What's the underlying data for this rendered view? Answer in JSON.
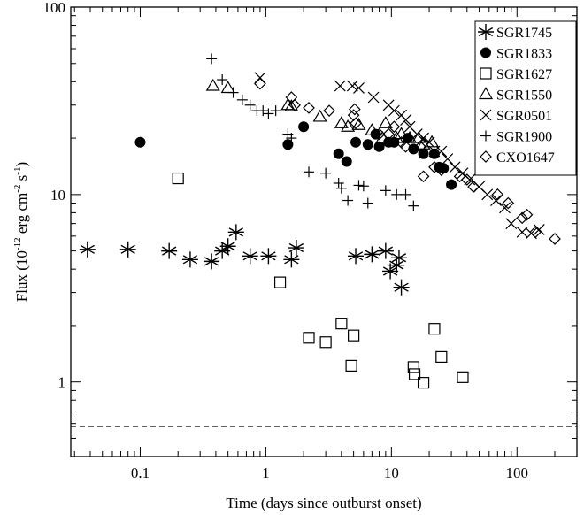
{
  "chart_data": {
    "type": "scatter",
    "title": "",
    "xlabel": "Time (days since outburst onset)",
    "ylabel_parts": {
      "before_exp1": "Flux (10",
      "exp1": "-12",
      "mid1": " erg cm",
      "exp2": "-2",
      "mid2": " s",
      "exp3": "-1",
      "after": ")"
    },
    "xscale": "log",
    "yscale": "log",
    "xlim": [
      0.028,
      300
    ],
    "ylim": [
      0.4,
      100
    ],
    "x_ticks": [
      {
        "value": 0.1,
        "label": "0.1"
      },
      {
        "value": 1,
        "label": "1"
      },
      {
        "value": 10,
        "label": "10"
      },
      {
        "value": 100,
        "label": "100"
      }
    ],
    "y_ticks": [
      {
        "value": 1,
        "label": "1"
      },
      {
        "value": 10,
        "label": "10"
      },
      {
        "value": 100,
        "label": "100"
      }
    ],
    "reference_line": {
      "y": 0.58,
      "style": "dashed"
    },
    "legend_position": "top-right",
    "series": [
      {
        "name": "SGR1745",
        "marker": "asterisk",
        "points": [
          [
            0.038,
            5.1
          ],
          [
            0.08,
            5.1
          ],
          [
            0.17,
            5.0
          ],
          [
            0.25,
            4.5
          ],
          [
            0.37,
            4.4
          ],
          [
            0.45,
            5.0
          ],
          [
            0.5,
            5.3
          ],
          [
            0.58,
            6.3
          ],
          [
            0.75,
            4.7
          ],
          [
            1.05,
            4.7
          ],
          [
            1.6,
            4.5
          ],
          [
            1.75,
            5.2
          ],
          [
            5.2,
            4.7
          ],
          [
            7,
            4.8
          ],
          [
            9,
            5.0
          ],
          [
            9.8,
            3.9
          ],
          [
            11,
            4.2
          ],
          [
            11.5,
            4.6
          ],
          [
            12,
            3.2
          ]
        ]
      },
      {
        "name": "SGR1833",
        "marker": "filled-circle",
        "points": [
          [
            0.1,
            19
          ],
          [
            1.5,
            18.5
          ],
          [
            2,
            23
          ],
          [
            3.8,
            16.5
          ],
          [
            4.4,
            15
          ],
          [
            5.2,
            19
          ],
          [
            6.5,
            18.5
          ],
          [
            7.5,
            21
          ],
          [
            8,
            18
          ],
          [
            9.5,
            19
          ],
          [
            10.5,
            19
          ],
          [
            13.5,
            20
          ],
          [
            15,
            17.5
          ],
          [
            18,
            16.5
          ],
          [
            22,
            16.5
          ],
          [
            24,
            14
          ],
          [
            26,
            13.8
          ],
          [
            30,
            11.3
          ]
        ]
      },
      {
        "name": "SGR1627",
        "marker": "open-square",
        "points": [
          [
            0.2,
            12.2
          ],
          [
            1.3,
            3.4
          ],
          [
            2.2,
            1.72
          ],
          [
            3,
            1.63
          ],
          [
            4,
            2.05
          ],
          [
            4.8,
            1.22
          ],
          [
            5,
            1.77
          ],
          [
            15,
            1.2
          ],
          [
            15.3,
            1.1
          ],
          [
            18,
            0.99
          ],
          [
            22,
            1.92
          ],
          [
            25,
            1.36
          ],
          [
            37,
            1.06
          ]
        ]
      },
      {
        "name": "SGR1550",
        "marker": "open-triangle",
        "points": [
          [
            0.38,
            38
          ],
          [
            0.5,
            37
          ],
          [
            1.5,
            30
          ],
          [
            1.6,
            29.5
          ],
          [
            2.7,
            26
          ],
          [
            4,
            24
          ],
          [
            4.5,
            23
          ],
          [
            5.5,
            23.5
          ],
          [
            7,
            22
          ],
          [
            8.5,
            20
          ],
          [
            9,
            24
          ],
          [
            11,
            20
          ],
          [
            12,
            21
          ],
          [
            14,
            20
          ],
          [
            16.5,
            20
          ],
          [
            18,
            18.5
          ],
          [
            21,
            19
          ]
        ]
      },
      {
        "name": "SGR0501",
        "marker": "x",
        "points": [
          [
            0.9,
            42
          ],
          [
            3.9,
            38
          ],
          [
            4.9,
            38
          ],
          [
            5.5,
            37
          ],
          [
            7.2,
            33
          ],
          [
            9.5,
            30
          ],
          [
            10.5,
            28
          ],
          [
            12,
            26.5
          ],
          [
            13,
            25
          ],
          [
            14,
            23
          ],
          [
            16,
            21
          ],
          [
            18,
            20
          ],
          [
            20,
            19
          ],
          [
            22,
            17
          ],
          [
            25,
            17
          ],
          [
            28,
            15.5
          ],
          [
            32,
            14
          ],
          [
            37,
            13
          ],
          [
            42,
            12
          ],
          [
            50,
            11
          ],
          [
            58,
            10
          ],
          [
            68,
            9.3
          ],
          [
            80,
            8.5
          ],
          [
            90,
            7
          ],
          [
            110,
            6.3
          ],
          [
            130,
            6.2
          ],
          [
            150,
            6.5
          ]
        ]
      },
      {
        "name": "SGR1900",
        "marker": "plus",
        "points": [
          [
            0.37,
            53
          ],
          [
            0.45,
            41
          ],
          [
            0.55,
            35
          ],
          [
            0.65,
            32
          ],
          [
            0.75,
            30
          ],
          [
            0.85,
            28
          ],
          [
            0.95,
            28
          ],
          [
            1.05,
            27
          ],
          [
            1.2,
            28
          ],
          [
            1.5,
            21
          ],
          [
            1.6,
            20
          ],
          [
            2.2,
            13.2
          ],
          [
            3,
            13
          ],
          [
            3.8,
            11.5
          ],
          [
            4,
            10.8
          ],
          [
            4.5,
            9.3
          ],
          [
            5.5,
            11.2
          ],
          [
            6,
            11.1
          ],
          [
            6.5,
            9
          ],
          [
            9,
            10.5
          ],
          [
            11,
            10
          ],
          [
            13,
            10
          ],
          [
            15,
            8.7
          ]
        ]
      },
      {
        "name": "CXO1647",
        "marker": "open-diamond",
        "points": [
          [
            0.9,
            39
          ],
          [
            1.6,
            33
          ],
          [
            1.7,
            30
          ],
          [
            2.2,
            29
          ],
          [
            3.2,
            28
          ],
          [
            5,
            26.5
          ],
          [
            5.1,
            28.5
          ],
          [
            5.2,
            24
          ],
          [
            8,
            21
          ],
          [
            9.5,
            21
          ],
          [
            10.5,
            23
          ],
          [
            12,
            19
          ],
          [
            13,
            18
          ],
          [
            17,
            18
          ],
          [
            18,
            12.5
          ],
          [
            22,
            14
          ],
          [
            25,
            13.5
          ],
          [
            35,
            12.5
          ],
          [
            40,
            12
          ],
          [
            45,
            11
          ],
          [
            70,
            10
          ],
          [
            85,
            9
          ],
          [
            110,
            7.5
          ],
          [
            120,
            7.8
          ],
          [
            140,
            6.3
          ],
          [
            200,
            5.8
          ]
        ]
      }
    ]
  }
}
